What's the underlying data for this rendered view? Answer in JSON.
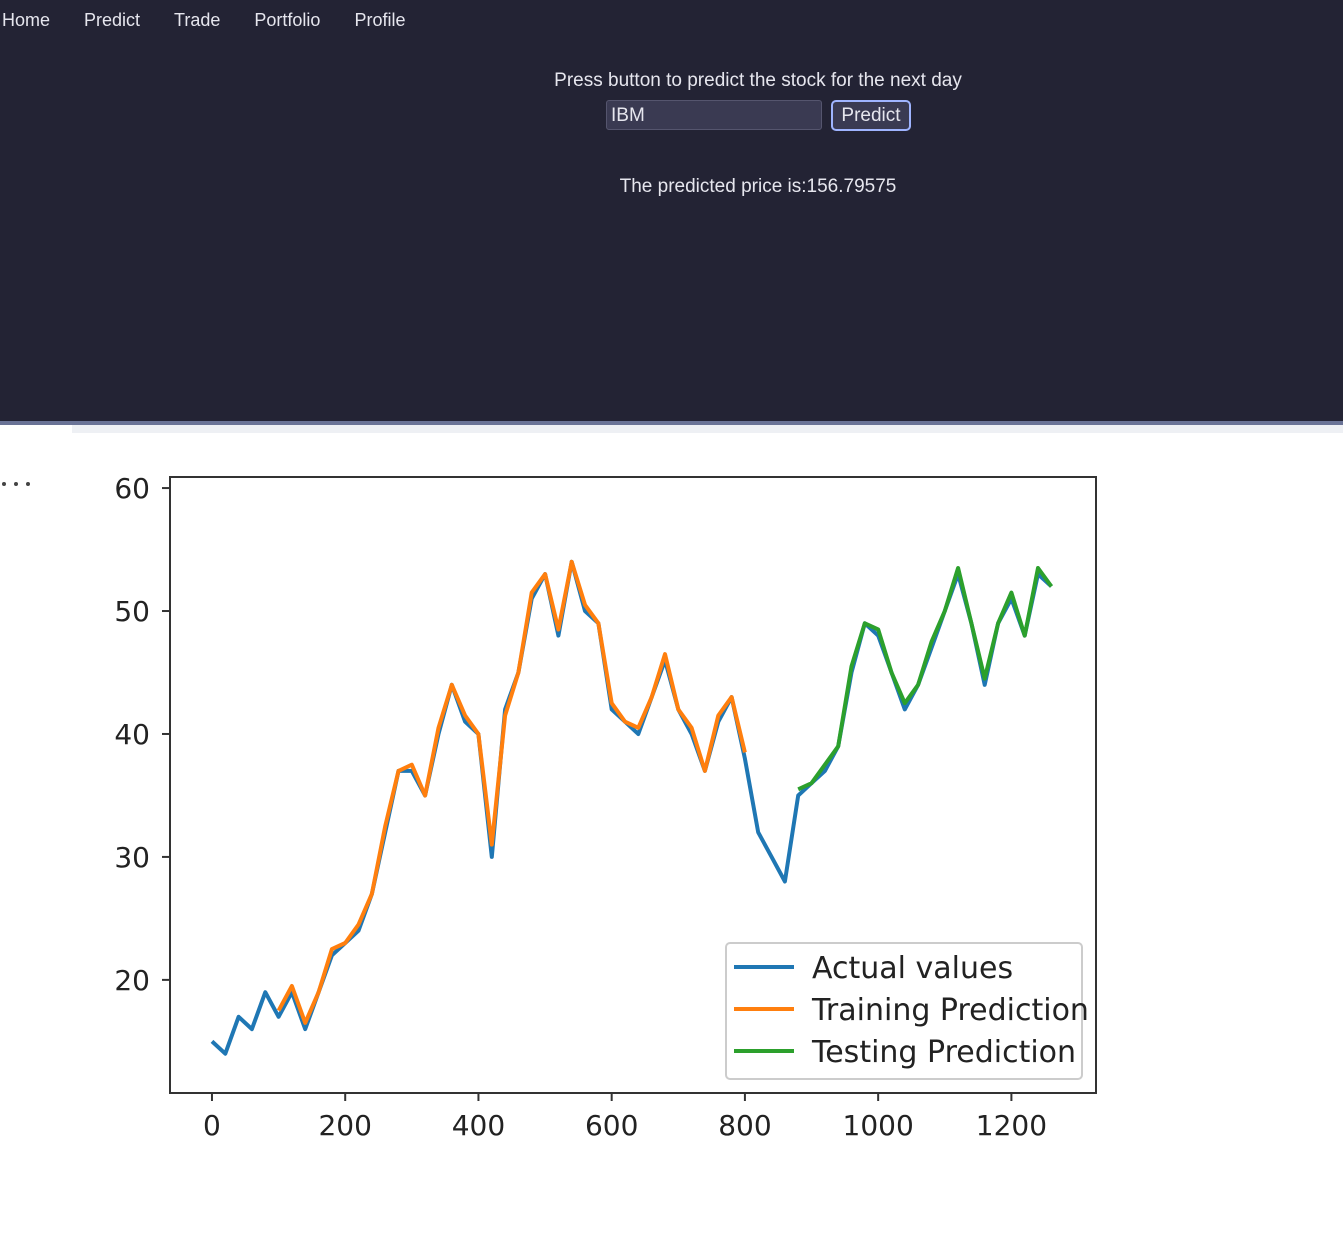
{
  "nav": [
    "Home",
    "Predict",
    "Trade",
    "Portfolio",
    "Profile"
  ],
  "prompt": "Press button to predict the stock for the next day",
  "input_value": "IBM",
  "button": "Predict",
  "result": "The predicted price is:156.79575",
  "chart_data": {
    "type": "line",
    "x": [
      0,
      20,
      40,
      60,
      80,
      100,
      120,
      140,
      160,
      180,
      200,
      220,
      240,
      260,
      280,
      300,
      320,
      340,
      360,
      380,
      400,
      420,
      440,
      460,
      480,
      500,
      520,
      540,
      560,
      580,
      600,
      620,
      640,
      660,
      680,
      700,
      720,
      740,
      760,
      780,
      800,
      820,
      840,
      860,
      880,
      900,
      920,
      940,
      960,
      980,
      1000,
      1020,
      1040,
      1060,
      1080,
      1100,
      1120,
      1140,
      1160,
      1180,
      1200,
      1220,
      1240,
      1260
    ],
    "series": [
      {
        "name": "Actual values",
        "color": "#1f77b4",
        "values": [
          15,
          14,
          17,
          16,
          19,
          17,
          19,
          16,
          19,
          22,
          23,
          24,
          27,
          32,
          37,
          37,
          35,
          40,
          44,
          41,
          40,
          30,
          42,
          45,
          51,
          53,
          48,
          54,
          50,
          49,
          42,
          41,
          40,
          43,
          46,
          42,
          40,
          37,
          41,
          43,
          38,
          32,
          30,
          28,
          35,
          36,
          37,
          39,
          45,
          49,
          48,
          45,
          42,
          44,
          47,
          50,
          53,
          49,
          44,
          49,
          51,
          48,
          53,
          52
        ]
      },
      {
        "name": "Training Prediction",
        "color": "#ff7f0e",
        "values": [
          null,
          null,
          null,
          null,
          null,
          17.5,
          19.5,
          16.5,
          19,
          22.5,
          23,
          24.5,
          27,
          32.5,
          37,
          37.5,
          35,
          40.5,
          44,
          41.5,
          40,
          31,
          41.5,
          45,
          51.5,
          53,
          48.5,
          54,
          50.5,
          49,
          42.5,
          41,
          40.5,
          43,
          46.5,
          42,
          40.5,
          37,
          41.5,
          43,
          38.5,
          null,
          null,
          null,
          null,
          null,
          null,
          null,
          null,
          null,
          null,
          null,
          null,
          null,
          null,
          null,
          null,
          null,
          null,
          null,
          null,
          null,
          null,
          null
        ]
      },
      {
        "name": "Testing Prediction",
        "color": "#2ca02c",
        "values": [
          null,
          null,
          null,
          null,
          null,
          null,
          null,
          null,
          null,
          null,
          null,
          null,
          null,
          null,
          null,
          null,
          null,
          null,
          null,
          null,
          null,
          null,
          null,
          null,
          null,
          null,
          null,
          null,
          null,
          null,
          null,
          null,
          null,
          null,
          null,
          null,
          null,
          null,
          null,
          null,
          null,
          null,
          null,
          null,
          35.5,
          36,
          37.5,
          39,
          45.5,
          49,
          48.5,
          45,
          42.5,
          44,
          47.5,
          50,
          53.5,
          49,
          44.5,
          49,
          51.5,
          48,
          53.5,
          52
        ]
      }
    ],
    "xlim": [
      -63,
      1327
    ],
    "ylim": [
      10.8,
      60.9
    ],
    "xticks": [
      0,
      200,
      400,
      600,
      800,
      1000,
      1200
    ],
    "yticks": [
      20,
      30,
      40,
      50,
      60
    ],
    "legend": "lower right"
  }
}
